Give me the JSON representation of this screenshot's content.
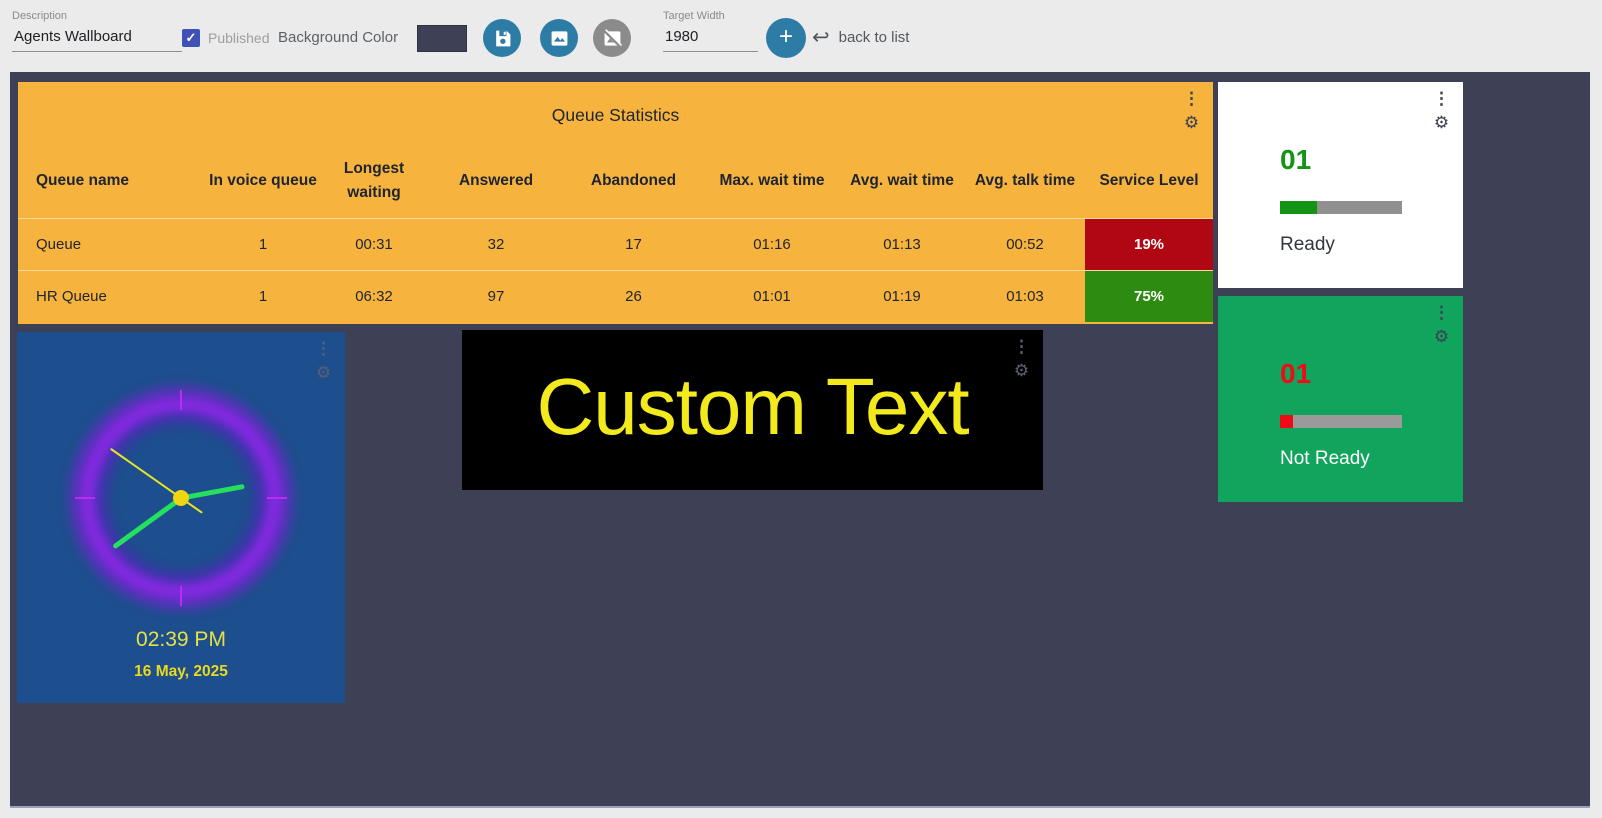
{
  "toolbar": {
    "description": {
      "label": "Description",
      "value": "Agents Wallboard"
    },
    "published": {
      "label": "Published",
      "checked": true,
      "check_glyph": "✓"
    },
    "background_color": {
      "label": "Background Color",
      "value": "#3e4155"
    },
    "target_width": {
      "label": "Target Width",
      "value": "1980"
    },
    "add_label": "+",
    "back_to_list": {
      "arrow": "↩",
      "label": "back to list"
    }
  },
  "icons": {
    "kebab_glyph": "⋮",
    "gear_glyph": "⚙"
  },
  "colors": {
    "toolbar_background": "#ebebeb",
    "canvas_background": "#3e4155",
    "button_blue": "#2d7ca6",
    "button_gray": "#8b8b8b",
    "checkbox_blue": "#3f51b5"
  },
  "widgets": {
    "queue_table": {
      "title": "Queue Statistics",
      "background": "#f6b33d",
      "columns": [
        "Queue name",
        "In voice queue",
        "Longest waiting",
        "Answered",
        "Abandoned",
        "Max. wait time",
        "Avg. wait time",
        "Avg. talk time",
        "Service Level"
      ],
      "rows": [
        {
          "cells": [
            "Queue",
            "1",
            "00:31",
            "32",
            "17",
            "01:16",
            "01:13",
            "00:52"
          ],
          "service_level": "19%",
          "service_level_color": "#b00713"
        },
        {
          "cells": [
            "HR Queue",
            "1",
            "06:32",
            "97",
            "26",
            "01:01",
            "01:19",
            "01:03"
          ],
          "service_level": "75%",
          "service_level_color": "#2e8b11"
        }
      ]
    },
    "clock": {
      "time": "02:39 PM",
      "date": "16 May, 2025",
      "background": "#1d4e8d",
      "hand_color": "#25e05e",
      "second_hand_color": "#e8e427",
      "ring_color": "#9b1ff0"
    },
    "custom_text": {
      "text": "Custom Text",
      "color": "#f2ea1c",
      "background": "#000000"
    },
    "ready": {
      "value": "01",
      "value_color": "#149414",
      "bar_percent": 30,
      "bar_color": "#149414",
      "bar_track_color": "#909090",
      "label": "Ready",
      "label_color": "#33363f",
      "background": "#ffffff"
    },
    "not_ready": {
      "value": "01",
      "value_color": "#ef0b15",
      "bar_percent": 11,
      "bar_color": "#ef0b15",
      "bar_track_color": "#9a9a9a",
      "label": "Not Ready",
      "label_color": "#ffffff",
      "background": "#10a45c"
    }
  }
}
